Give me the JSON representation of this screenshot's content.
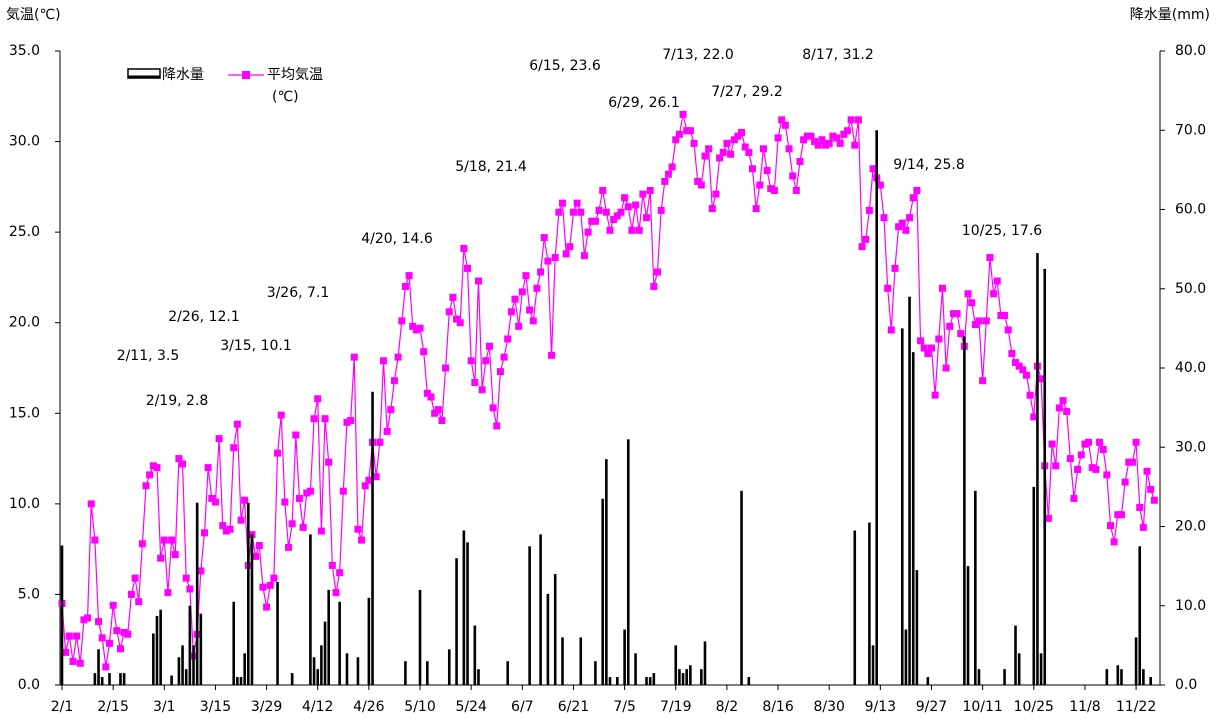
{
  "chart_data": {
    "type": "bar-line",
    "y_label": "気温(℃)",
    "y2_label": "降水量(mm)",
    "categories": [
      "2/1",
      null,
      null,
      null,
      null,
      null,
      null,
      null,
      null,
      null,
      null,
      null,
      null,
      null,
      "2/15",
      null,
      null,
      null,
      null,
      null,
      null,
      null,
      null,
      null,
      null,
      null,
      null,
      null,
      "3/1",
      null,
      null,
      null,
      null,
      null,
      null,
      null,
      null,
      null,
      null,
      null,
      null,
      null,
      "3/15",
      null,
      null,
      null,
      null,
      null,
      null,
      null,
      null,
      null,
      null,
      null,
      null,
      null,
      "3/29",
      null,
      null,
      null,
      null,
      null,
      null,
      null,
      null,
      null,
      null,
      null,
      null,
      null,
      "4/12",
      null,
      null,
      null,
      null,
      null,
      null,
      null,
      null,
      null,
      null,
      null,
      null,
      null,
      "4/26",
      null,
      null,
      null,
      null,
      null,
      null,
      null,
      null,
      null,
      null,
      null,
      null,
      null,
      "5/10",
      null,
      null,
      null,
      null,
      null,
      null,
      null,
      null,
      null,
      null,
      null,
      null,
      null,
      "5/24",
      null,
      null,
      null,
      null,
      null,
      null,
      null,
      null,
      null,
      null,
      null,
      null,
      null,
      "6/7",
      null,
      null,
      null,
      null,
      null,
      null,
      null,
      null,
      null,
      null,
      null,
      null,
      null,
      "6/21",
      null,
      null,
      null,
      null,
      null,
      null,
      null,
      null,
      null,
      null,
      null,
      null,
      null,
      "7/5",
      null,
      null,
      null,
      null,
      null,
      null,
      null,
      null,
      null,
      null,
      null,
      null,
      null,
      "7/19",
      null,
      null,
      null,
      null,
      null,
      null,
      null,
      null,
      null,
      null,
      null,
      null,
      null,
      "8/2",
      null,
      null,
      null,
      null,
      null,
      null,
      null,
      null,
      null,
      null,
      null,
      null,
      null,
      "8/16",
      null,
      null,
      null,
      null,
      null,
      null,
      null,
      null,
      null,
      null,
      null,
      null,
      null,
      "8/30",
      null,
      null,
      null,
      null,
      null,
      null,
      null,
      null,
      null,
      null,
      null,
      null,
      null,
      "9/13",
      null,
      null,
      null,
      null,
      null,
      null,
      null,
      null,
      null,
      null,
      null,
      null,
      null,
      "9/27",
      null,
      null,
      null,
      null,
      null,
      null,
      null,
      null,
      null,
      null,
      null,
      null,
      null,
      "10/11",
      null,
      null,
      null,
      null,
      null,
      null,
      null,
      null,
      null,
      null,
      null,
      null,
      null,
      "10/25",
      null,
      null,
      null,
      null,
      null,
      null,
      null,
      null,
      null,
      null,
      null,
      null,
      null,
      "11/8",
      null,
      null,
      null,
      null,
      null,
      null,
      null,
      null,
      null,
      null,
      null,
      null,
      null,
      "11/22",
      null,
      null,
      null,
      null,
      null
    ],
    "series": [
      {
        "name": "降水量",
        "type": "bar",
        "axis": "y2",
        "color": "#000000",
        "values": [
          17.6,
          0,
          0,
          0,
          0,
          0,
          0,
          0,
          0,
          1.5,
          4.5,
          1.0,
          0,
          1.5,
          0,
          0,
          1.5,
          1.5,
          0,
          0,
          0,
          0,
          0,
          0,
          0,
          6.5,
          8.7,
          9.5,
          0,
          0,
          1.2,
          0,
          3.5,
          5.0,
          2.0,
          10.0,
          5.0,
          23.0,
          9.0,
          0,
          0,
          0,
          0,
          0,
          0,
          0,
          0,
          10.5,
          1.0,
          1.0,
          4.0,
          23.0,
          19.0,
          0,
          0,
          0,
          0,
          0,
          0,
          13.0,
          0,
          0,
          0,
          1.5,
          0,
          0,
          0,
          0,
          19.0,
          3.5,
          2.0,
          5.0,
          8.0,
          12.0,
          0,
          0,
          10.5,
          0,
          4.0,
          0,
          0,
          3.5,
          0,
          0,
          11.0,
          37.0,
          0,
          0,
          0,
          0,
          0,
          0,
          0,
          0,
          3.0,
          0,
          0,
          0,
          12.0,
          0,
          3.0,
          0,
          0,
          0,
          0,
          0,
          4.5,
          0,
          16.0,
          0,
          19.5,
          18.0,
          0,
          7.5,
          2.0,
          0,
          0,
          0,
          0,
          0,
          0,
          0,
          3.0,
          0,
          0,
          0,
          0,
          0,
          17.5,
          0,
          0,
          19.0,
          0,
          11.5,
          0,
          14.0,
          0,
          6.0,
          0,
          0,
          0,
          0,
          6.0,
          0,
          0,
          0,
          3.0,
          0,
          23.5,
          28.5,
          1.0,
          0,
          1.0,
          0,
          7.0,
          31.0,
          0,
          4.0,
          0,
          0,
          1.0,
          1.0,
          1.5,
          0,
          0,
          0,
          0,
          0,
          5.0,
          2.0,
          1.5,
          2.0,
          2.5,
          0,
          0,
          2.0,
          5.5,
          0,
          0,
          0,
          0,
          0,
          0,
          0,
          0,
          0,
          24.5,
          0,
          1.0,
          0,
          0,
          0,
          0,
          0,
          0,
          0,
          0,
          0,
          0,
          0,
          0,
          0,
          0,
          0,
          0,
          0,
          0,
          0,
          0,
          0,
          0,
          0,
          0,
          0,
          0,
          0,
          0,
          19.5,
          0,
          0,
          0,
          20.5,
          5.0,
          70.0,
          0,
          0,
          0,
          0,
          0,
          0,
          45.0,
          7.0,
          49.0,
          42.0,
          14.5,
          0,
          0,
          1.0,
          0,
          0,
          0,
          0,
          0,
          0,
          0,
          0,
          0,
          44.0,
          15.0,
          0,
          24.5,
          2.0,
          0,
          0,
          0,
          0,
          0,
          0,
          2.0,
          0,
          0,
          7.5,
          4.0,
          0,
          0,
          0,
          25.0,
          54.5,
          4.0,
          52.5,
          0,
          0,
          0,
          0,
          0,
          0,
          0,
          0,
          0,
          0,
          0,
          0,
          0,
          0,
          0,
          0,
          2.0,
          0,
          0,
          2.5,
          2.0,
          0,
          0,
          0,
          6.0,
          17.5,
          2.0,
          0,
          1.0,
          0
        ]
      },
      {
        "name": "平均気温",
        "name_unit": "(℃)",
        "type": "line",
        "axis": "y",
        "color": "#ff00ff",
        "values": [
          4.5,
          1.8,
          2.7,
          1.3,
          2.7,
          1.2,
          3.6,
          3.7,
          10.0,
          8.0,
          3.5,
          2.6,
          1.0,
          2.3,
          4.4,
          3.0,
          2.0,
          2.9,
          2.8,
          5.0,
          5.9,
          4.6,
          7.8,
          11.0,
          11.6,
          12.1,
          12.0,
          7.0,
          8.0,
          5.1,
          8.0,
          7.2,
          12.5,
          12.2,
          5.9,
          5.3,
          1.6,
          2.8,
          6.3,
          8.4,
          12.0,
          10.3,
          10.1,
          13.6,
          8.8,
          8.5,
          8.6,
          13.1,
          14.4,
          9.1,
          10.2,
          6.6,
          8.3,
          7.1,
          7.7,
          5.4,
          4.3,
          5.5,
          5.9,
          12.8,
          14.9,
          10.1,
          7.6,
          8.9,
          13.8,
          10.3,
          8.7,
          10.6,
          10.7,
          14.7,
          15.8,
          8.5,
          14.7,
          12.3,
          6.6,
          5.1,
          6.2,
          10.7,
          14.5,
          14.6,
          18.1,
          8.6,
          8.0,
          11.0,
          11.3,
          13.4,
          11.5,
          13.4,
          17.9,
          14.0,
          15.2,
          16.8,
          18.1,
          20.1,
          22.0,
          22.6,
          19.8,
          19.6,
          19.7,
          18.4,
          16.1,
          15.9,
          15.0,
          15.2,
          14.6,
          17.5,
          20.6,
          21.4,
          20.2,
          20.0,
          24.1,
          23.0,
          17.9,
          16.7,
          22.3,
          16.3,
          17.9,
          18.7,
          15.3,
          14.3,
          17.3,
          18.1,
          19.1,
          20.6,
          21.3,
          19.8,
          21.7,
          22.6,
          20.7,
          20.1,
          21.9,
          22.8,
          24.7,
          23.4,
          18.2,
          23.6,
          26.1,
          26.6,
          23.8,
          24.2,
          26.1,
          26.6,
          26.1,
          23.7,
          25.0,
          25.6,
          25.6,
          26.2,
          27.3,
          26.1,
          25.1,
          25.7,
          25.9,
          26.1,
          26.9,
          26.4,
          25.1,
          26.5,
          25.1,
          27.1,
          25.8,
          27.3,
          22.0,
          22.8,
          26.2,
          27.8,
          28.2,
          28.6,
          30.1,
          30.4,
          31.5,
          30.6,
          30.6,
          29.9,
          27.8,
          27.6,
          29.2,
          29.6,
          26.3,
          27.1,
          29.1,
          29.4,
          29.9,
          29.3,
          30.1,
          30.3,
          30.5,
          29.7,
          29.4,
          28.5,
          26.3,
          27.6,
          29.6,
          28.4,
          27.4,
          27.3,
          30.2,
          31.2,
          30.9,
          29.6,
          28.1,
          27.3,
          28.9,
          30.1,
          30.3,
          30.3,
          30.0,
          29.8,
          30.1,
          29.8,
          29.9,
          30.3,
          30.2,
          29.9,
          30.4,
          30.6,
          31.2,
          29.8,
          31.2,
          24.2,
          24.6,
          26.2,
          28.5,
          28.0,
          27.6,
          25.8,
          21.9,
          19.6,
          23.0,
          25.3,
          25.5,
          25.1,
          25.8,
          26.9,
          27.3,
          19.0,
          18.6,
          18.3,
          18.6,
          16.0,
          19.1,
          21.9,
          17.5,
          19.8,
          20.5,
          20.5,
          19.4,
          18.7,
          21.6,
          21.1,
          19.9,
          20.1,
          16.8,
          20.1,
          23.6,
          21.6,
          22.3,
          20.4,
          20.4,
          19.6,
          18.3,
          17.8,
          17.6,
          17.4,
          17.1,
          16.0,
          14.8,
          17.6,
          16.9,
          12.1,
          9.2,
          13.3,
          12.1,
          15.3,
          15.7,
          15.1,
          12.5,
          10.3,
          11.9,
          12.7,
          13.3,
          13.4,
          12.0,
          11.9,
          13.4,
          13.0,
          11.6,
          8.8,
          7.9,
          9.4,
          9.4,
          11.2,
          12.3,
          12.3,
          13.4,
          9.8,
          8.7,
          11.8,
          10.8,
          10.2
        ]
      }
    ],
    "ylim": [
      0,
      35
    ],
    "yticks": [
      {
        "value": 0,
        "label": "0.0"
      },
      {
        "value": 5,
        "label": "5.0"
      },
      {
        "value": 10,
        "label": "10.0"
      },
      {
        "value": 15,
        "label": "15.0"
      },
      {
        "value": 20,
        "label": "20.0"
      },
      {
        "value": 25,
        "label": "25.0"
      },
      {
        "value": 30,
        "label": "30.0"
      },
      {
        "value": 35,
        "label": "35.0"
      }
    ],
    "y2lim": [
      0,
      80
    ],
    "y2ticks": [
      {
        "value": 0,
        "label": "0.0"
      },
      {
        "value": 10,
        "label": "10.0"
      },
      {
        "value": 20,
        "label": "20.0"
      },
      {
        "value": 30,
        "label": "30.0"
      },
      {
        "value": 40,
        "label": "40.0"
      },
      {
        "value": 50,
        "label": "50.0"
      },
      {
        "value": 60,
        "label": "60.0"
      },
      {
        "value": 70,
        "label": "70.0"
      },
      {
        "value": 80,
        "label": "80.0"
      }
    ],
    "grid": false,
    "legend": "top-left",
    "annotations": [
      "6/15, 23.6",
      "7/13, 22.0",
      "8/17, 31.2",
      "6/29, 26.1",
      "7/27, 29.2",
      "5/18, 21.4",
      "9/14, 25.8",
      "4/20, 14.6",
      "10/25, 17.6",
      "3/26, 7.1",
      "2/26, 12.1",
      "2/11, 3.5",
      "3/15, 10.1",
      "2/19, 2.8"
    ]
  }
}
